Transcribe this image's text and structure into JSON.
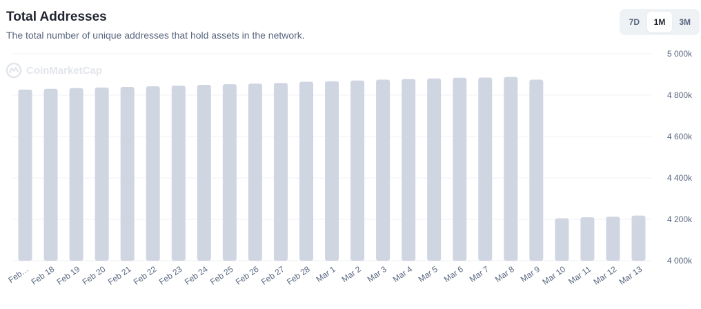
{
  "header": {
    "title": "Total Addresses",
    "subtitle": "The total number of unique addresses that hold assets in the network."
  },
  "range": {
    "options": [
      "7D",
      "1M",
      "3M"
    ],
    "selected": "1M"
  },
  "watermark": {
    "text": "CoinMarketCap",
    "icon": "coinmarketcap-logo-icon"
  },
  "colors": {
    "bar": "#d0d5e2",
    "grid": "#eff2f5",
    "text": "#58667e"
  },
  "chart_data": {
    "type": "bar",
    "categories": [
      "Feb…",
      "Feb 18",
      "Feb 19",
      "Feb 20",
      "Feb 21",
      "Feb 22",
      "Feb 23",
      "Feb 24",
      "Feb 25",
      "Feb 26",
      "Feb 27",
      "Feb 28",
      "Mar 1",
      "Mar 2",
      "Mar 3",
      "Mar 4",
      "Mar 5",
      "Mar 6",
      "Mar 7",
      "Mar 8",
      "Mar 9",
      "Mar 10",
      "Mar 11",
      "Mar 12",
      "Mar 13"
    ],
    "values": [
      4827000,
      4831000,
      4834000,
      4837000,
      4840000,
      4843000,
      4846000,
      4850000,
      4853000,
      4856000,
      4859000,
      4865000,
      4867000,
      4871000,
      4875000,
      4878000,
      4881000,
      4884000,
      4885000,
      4888000,
      4875000,
      4205000,
      4210000,
      4213000,
      4218000
    ],
    "yticks": [
      "5 000k",
      "4 800k",
      "4 600k",
      "4 400k",
      "4 200k",
      "4 000k"
    ],
    "ytick_values": [
      5000000,
      4800000,
      4600000,
      4400000,
      4200000,
      4000000
    ],
    "ylim": [
      4000000,
      5000000
    ],
    "grid": true
  }
}
